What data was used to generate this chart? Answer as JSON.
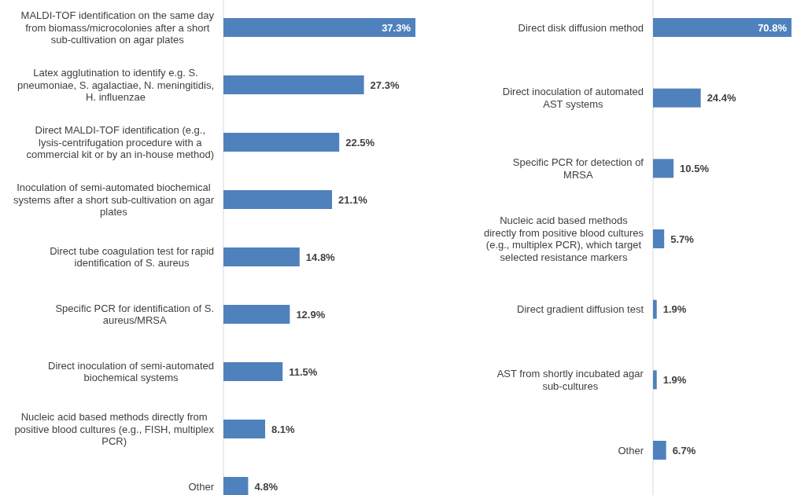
{
  "chart_data": [
    {
      "type": "bar",
      "orientation": "horizontal",
      "categories": [
        "MALDI-TOF identification on the same day from biomass/microcolonies after a short sub-cultivation on agar plates",
        "Latex agglutination to identify e.g. S. pneumoniae, S. agalactiae, N. meningitidis, H. influenzae",
        "Direct MALDI-TOF identification (e.g., lysis-centrifugation procedure with a commercial kit or by an in-house method)",
        "Inoculation of semi-automated biochemical systems after a short sub-cultivation on agar plates",
        "Direct tube coagulation test for rapid identification of S. aureus",
        "Specific PCR for identification of S. aureus/MRSA",
        "Direct inoculation of semi-automated biochemical systems",
        "Nucleic acid based methods directly from positive blood cultures (e.g., FISH, multiplex PCR)",
        "Other"
      ],
      "values": [
        37.3,
        27.3,
        22.5,
        21.1,
        14.8,
        12.9,
        11.5,
        8.1,
        4.8
      ],
      "value_labels": [
        "37.3%",
        "27.3%",
        "22.5%",
        "21.1%",
        "14.8%",
        "12.9%",
        "11.5%",
        "8.1%",
        "4.8%"
      ],
      "color": "#4f81bd"
    },
    {
      "type": "bar",
      "orientation": "horizontal",
      "categories": [
        "Direct disk diffusion method",
        "Direct inoculation of automated AST systems",
        "Specific PCR for detection of MRSA",
        "Nucleic acid based methods directly from positive blood cultures (e.g., multiplex PCR), which target selected resistance markers",
        "Direct gradient diffusion test",
        "AST from shortly incubated agar sub-cultures",
        "Other"
      ],
      "values": [
        70.8,
        24.4,
        10.5,
        5.7,
        1.9,
        1.9,
        6.7
      ],
      "value_labels": [
        "70.8%",
        "24.4%",
        "10.5%",
        "5.7%",
        "1.9%",
        "1.9%",
        "6.7%"
      ],
      "color": "#4f81bd"
    }
  ]
}
